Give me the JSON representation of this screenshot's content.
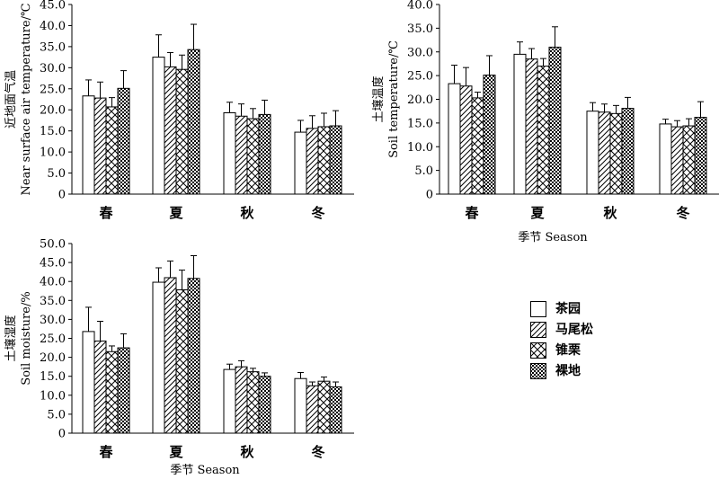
{
  "legend": {
    "items": [
      {
        "label": "茶园",
        "pattern": "plain"
      },
      {
        "label": "马尾松",
        "pattern": "diag"
      },
      {
        "label": "锥栗",
        "pattern": "cross"
      },
      {
        "label": "裸地",
        "pattern": "checker"
      }
    ]
  },
  "chart_data": [
    {
      "type": "bar",
      "ylabel_cn": "近地面气温",
      "ylabel_en": "Near surface air temperature/℃",
      "xlabel": "",
      "categories": [
        "春",
        "夏",
        "秋",
        "冬"
      ],
      "ylim": [
        0,
        45
      ],
      "yticks": [
        "0",
        "5.0",
        "10.0",
        "15.0",
        "20.0",
        "25.0",
        "30.0",
        "35.0",
        "40.0",
        "45.0"
      ],
      "series": [
        {
          "name": "茶园",
          "values": [
            23.3,
            32.5,
            19.3,
            14.7
          ],
          "errors": [
            3.8,
            5.3,
            2.5,
            2.8
          ]
        },
        {
          "name": "马尾松",
          "values": [
            22.8,
            30.2,
            18.5,
            15.6
          ],
          "errors": [
            3.8,
            3.4,
            2.9,
            3.0
          ]
        },
        {
          "name": "锥栗",
          "values": [
            20.7,
            29.6,
            17.9,
            16.0
          ],
          "errors": [
            2.2,
            3.4,
            2.4,
            3.2
          ]
        },
        {
          "name": "裸地",
          "values": [
            25.1,
            34.3,
            18.9,
            16.2
          ],
          "errors": [
            4.2,
            6.0,
            3.4,
            3.6
          ]
        }
      ]
    },
    {
      "type": "bar",
      "ylabel_cn": "土壤温度",
      "ylabel_en": "Soil temperature/℃",
      "xlabel": "季节 Season",
      "categories": [
        "春",
        "夏",
        "秋",
        "冬"
      ],
      "ylim": [
        0,
        40
      ],
      "yticks": [
        "0",
        "5.0",
        "10.0",
        "15.0",
        "20.0",
        "25.0",
        "30.0",
        "35.0",
        "40.0"
      ],
      "series": [
        {
          "name": "茶园",
          "values": [
            23.3,
            29.5,
            17.5,
            14.8
          ],
          "errors": [
            3.9,
            2.6,
            1.8,
            1.0
          ]
        },
        {
          "name": "马尾松",
          "values": [
            22.8,
            28.5,
            17.3,
            14.2
          ],
          "errors": [
            3.9,
            2.2,
            1.7,
            1.3
          ]
        },
        {
          "name": "锥栗",
          "values": [
            20.3,
            27.0,
            17.0,
            14.4
          ],
          "errors": [
            1.2,
            1.6,
            1.7,
            1.5
          ]
        },
        {
          "name": "裸地",
          "values": [
            25.1,
            31.0,
            18.1,
            16.2
          ],
          "errors": [
            4.1,
            4.3,
            2.3,
            3.3
          ]
        }
      ]
    },
    {
      "type": "bar",
      "ylabel_cn": "土壤湿度",
      "ylabel_en": "Soil moisture/%",
      "xlabel": "季节 Season",
      "categories": [
        "春",
        "夏",
        "秋",
        "冬"
      ],
      "ylim": [
        0,
        50
      ],
      "yticks": [
        "0",
        "5.0",
        "10.0",
        "15.0",
        "20.0",
        "25.0",
        "30.0",
        "35.0",
        "40.0",
        "45.0",
        "50.0"
      ],
      "series": [
        {
          "name": "茶园",
          "values": [
            26.8,
            39.8,
            16.8,
            14.4
          ],
          "errors": [
            6.4,
            3.8,
            1.4,
            1.6
          ]
        },
        {
          "name": "马尾松",
          "values": [
            24.3,
            41.0,
            17.5,
            12.5
          ],
          "errors": [
            5.2,
            4.4,
            1.6,
            1.0
          ]
        },
        {
          "name": "锥栗",
          "values": [
            21.5,
            37.8,
            16.2,
            13.7
          ],
          "errors": [
            1.5,
            5.2,
            0.9,
            1.1
          ]
        },
        {
          "name": "裸地",
          "values": [
            22.5,
            40.8,
            15.0,
            12.2
          ],
          "errors": [
            3.7,
            6.0,
            0.9,
            1.3
          ]
        }
      ]
    }
  ]
}
